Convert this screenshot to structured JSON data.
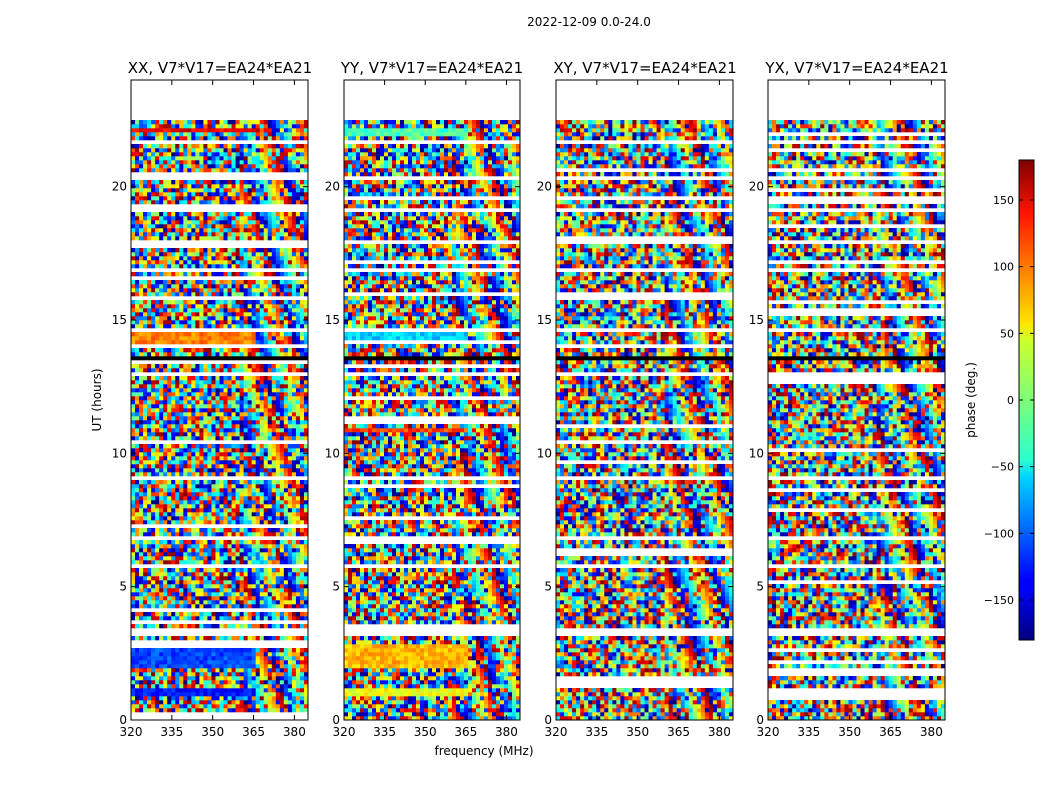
{
  "chart_data": {
    "type": "heatmap",
    "suptitle": "2022-12-09 0.0-24.0",
    "xlabel": "frequency (MHz)",
    "ylabel": "UT (hours)",
    "xlim": [
      320,
      385
    ],
    "ylim": [
      0,
      24
    ],
    "xticks": [
      320,
      335,
      350,
      365,
      380
    ],
    "yticks": [
      0,
      5,
      10,
      15,
      20
    ],
    "panels": [
      {
        "title": "XX, V7*V17=EA24*EA21",
        "pol": "XX"
      },
      {
        "title": "YY, V7*V17=EA24*EA21",
        "pol": "YY"
      },
      {
        "title": "XY, V7*V17=EA24*EA21",
        "pol": "XY"
      },
      {
        "title": "YX, V7*V17=EA24*EA21",
        "pol": "YX"
      }
    ],
    "colorbar": {
      "label": "phase (deg.)",
      "range": [
        -180,
        180
      ],
      "ticks": [
        -150,
        -100,
        -50,
        0,
        50,
        100,
        150
      ],
      "tick_labels": [
        "−150",
        "−100",
        "−50",
        "0",
        "50",
        "100",
        "150"
      ],
      "colormap": "jet"
    },
    "data_end_hours": 22.5,
    "flagged_gaps_hours": [
      [
        3.1,
        3.4
      ],
      [
        5.7,
        5.8
      ],
      [
        6.8,
        6.9
      ],
      [
        8.5,
        8.6
      ],
      [
        9.05,
        9.15
      ],
      [
        10.6,
        10.7
      ],
      [
        12.85,
        13.0
      ],
      [
        14.55,
        14.7
      ],
      [
        15.7,
        15.8
      ],
      [
        16.85,
        17.0
      ],
      [
        17.8,
        18.0
      ],
      [
        19.05,
        19.15
      ],
      [
        20.3,
        20.45
      ],
      [
        21.6,
        21.7
      ]
    ],
    "black_bands_hours": [
      [
        3.25,
        3.45
      ],
      [
        14.05,
        14.15
      ],
      [
        13.55,
        13.6
      ]
    ],
    "coherent_bands": [
      {
        "panel": "XX",
        "hours": [
          14.1,
          14.5
        ],
        "phase_deg": 90
      },
      {
        "panel": "XX",
        "hours": [
          0.95,
          1.25
        ],
        "phase_deg": -130
      },
      {
        "panel": "XX",
        "hours": [
          1.95,
          2.9
        ],
        "phase_deg": -110
      },
      {
        "panel": "XX",
        "hours": [
          22.1,
          22.2
        ],
        "phase_deg": 140
      },
      {
        "panel": "YY",
        "hours": [
          14.1,
          14.5
        ],
        "phase_deg": -60
      },
      {
        "panel": "YY",
        "hours": [
          0.95,
          1.25
        ],
        "phase_deg": 40
      },
      {
        "panel": "YY",
        "hours": [
          1.95,
          2.9
        ],
        "phase_deg": 70
      },
      {
        "panel": "YY",
        "hours": [
          10.8,
          10.95
        ],
        "phase_deg": 110
      },
      {
        "panel": "YY",
        "hours": [
          21.95,
          22.2
        ],
        "phase_deg": -20
      }
    ]
  }
}
